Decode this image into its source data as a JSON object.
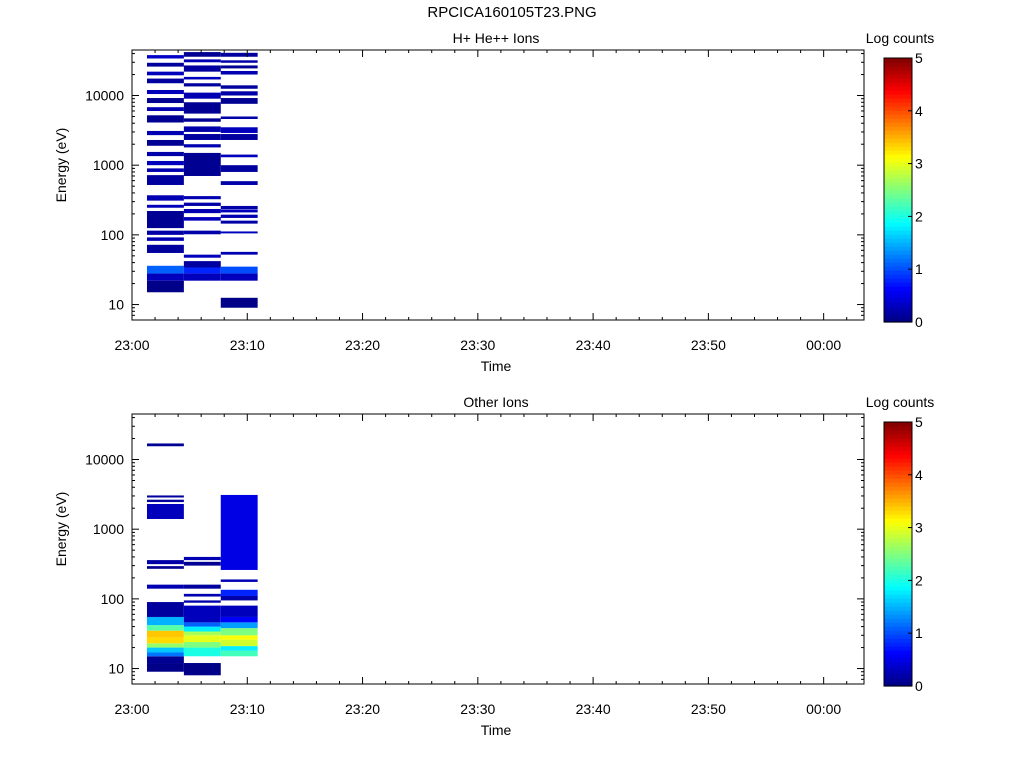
{
  "figure_title": "RPCICA160105T23.PNG",
  "colors": {
    "colormap": [
      "#00007f",
      "#0000ff",
      "#007fff",
      "#00ffff",
      "#7fff7f",
      "#ffff00",
      "#ff7f00",
      "#ff0000",
      "#7f0000"
    ]
  },
  "chart_data": [
    {
      "type": "heatmap",
      "title": "H+ He++ Ions",
      "xlabel": "Time",
      "ylabel": "Energy (eV)",
      "x_ticks": [
        "23:00",
        "23:10",
        "23:20",
        "23:30",
        "23:40",
        "23:50",
        "00:00"
      ],
      "x_range_minutes": [
        0,
        63.5
      ],
      "y_scale": "log",
      "y_range": [
        6,
        45000
      ],
      "y_ticks": [
        {
          "value": 10,
          "label": "10"
        },
        {
          "value": 100,
          "label": "100"
        },
        {
          "value": 1000,
          "label": "1000"
        },
        {
          "value": 10000,
          "label": "10000"
        }
      ],
      "colorbar": {
        "label": "Log counts",
        "range": [
          0,
          5
        ],
        "ticks": [
          "0",
          "1",
          "2",
          "3",
          "4",
          "5"
        ]
      },
      "columns": [
        {
          "t0": 1.3,
          "t1": 4.5,
          "cells": [
            {
              "e0": 15,
              "e1": 22,
              "v": 0.05
            },
            {
              "e0": 22,
              "e1": 28,
              "v": 0.3
            },
            {
              "e0": 28,
              "e1": 36,
              "v": 1.1
            },
            {
              "e0": 55,
              "e1": 72,
              "v": 0.15
            },
            {
              "e0": 82,
              "e1": 92,
              "v": 0.25
            },
            {
              "e0": 100,
              "e1": 115,
              "v": 0.2
            },
            {
              "e0": 125,
              "e1": 220,
              "v": 0.1
            },
            {
              "e0": 245,
              "e1": 270,
              "v": 0.3
            },
            {
              "e0": 310,
              "e1": 370,
              "v": 0.25
            },
            {
              "e0": 520,
              "e1": 720,
              "v": 0.15
            },
            {
              "e0": 800,
              "e1": 900,
              "v": 0.25
            },
            {
              "e0": 1000,
              "e1": 1150,
              "v": 0.3
            },
            {
              "e0": 1350,
              "e1": 1550,
              "v": 0.2
            },
            {
              "e0": 1900,
              "e1": 2300,
              "v": 0.1
            },
            {
              "e0": 2700,
              "e1": 3100,
              "v": 0.25
            },
            {
              "e0": 4100,
              "e1": 5200,
              "v": 0.1
            },
            {
              "e0": 6000,
              "e1": 6800,
              "v": 0.25
            },
            {
              "e0": 7800,
              "e1": 9200,
              "v": 0.1
            },
            {
              "e0": 10500,
              "e1": 12000,
              "v": 0.3
            },
            {
              "e0": 15000,
              "e1": 17500,
              "v": 0.15
            },
            {
              "e0": 19500,
              "e1": 22000,
              "v": 0.3
            },
            {
              "e0": 26000,
              "e1": 29500,
              "v": 0.15
            },
            {
              "e0": 34000,
              "e1": 38000,
              "v": 0.35
            }
          ]
        },
        {
          "t0": 4.5,
          "t1": 7.7,
          "cells": [
            {
              "e0": 22,
              "e1": 28,
              "v": 0.3
            },
            {
              "e0": 28,
              "e1": 34,
              "v": 0.8
            },
            {
              "e0": 34,
              "e1": 42,
              "v": 0.15
            },
            {
              "e0": 47,
              "e1": 52,
              "v": 0.3
            },
            {
              "e0": 102,
              "e1": 115,
              "v": 0.2
            },
            {
              "e0": 160,
              "e1": 180,
              "v": 0.3
            },
            {
              "e0": 205,
              "e1": 235,
              "v": 0.25
            },
            {
              "e0": 260,
              "e1": 290,
              "v": 0.2
            },
            {
              "e0": 325,
              "e1": 360,
              "v": 0.25
            },
            {
              "e0": 700,
              "e1": 1500,
              "v": 0.1
            },
            {
              "e0": 1800,
              "e1": 2000,
              "v": 0.25
            },
            {
              "e0": 2300,
              "e1": 2800,
              "v": 0.15
            },
            {
              "e0": 3000,
              "e1": 3600,
              "v": 0.2
            },
            {
              "e0": 4200,
              "e1": 4700,
              "v": 0.1
            },
            {
              "e0": 5500,
              "e1": 8000,
              "v": 0.1
            },
            {
              "e0": 9000,
              "e1": 11000,
              "v": 0.25
            },
            {
              "e0": 13500,
              "e1": 15000,
              "v": 0.15
            },
            {
              "e0": 17000,
              "e1": 18500,
              "v": 0.3
            },
            {
              "e0": 22000,
              "e1": 27000,
              "v": 0.15
            },
            {
              "e0": 30000,
              "e1": 33000,
              "v": 0.25
            },
            {
              "e0": 36000,
              "e1": 42000,
              "v": 0.1
            }
          ]
        },
        {
          "t0": 7.7,
          "t1": 10.9,
          "cells": [
            {
              "e0": 9,
              "e1": 12.5,
              "v": 0.05
            },
            {
              "e0": 22,
              "e1": 28,
              "v": 0.3
            },
            {
              "e0": 28,
              "e1": 35,
              "v": 1.0
            },
            {
              "e0": 52,
              "e1": 57,
              "v": 0.25
            },
            {
              "e0": 105,
              "e1": 112,
              "v": 0.3
            },
            {
              "e0": 145,
              "e1": 160,
              "v": 0.2
            },
            {
              "e0": 175,
              "e1": 195,
              "v": 0.25
            },
            {
              "e0": 210,
              "e1": 232,
              "v": 0.3
            },
            {
              "e0": 235,
              "e1": 260,
              "v": 0.2
            },
            {
              "e0": 520,
              "e1": 590,
              "v": 0.2
            },
            {
              "e0": 800,
              "e1": 1000,
              "v": 0.15
            },
            {
              "e0": 1300,
              "e1": 1420,
              "v": 0.3
            },
            {
              "e0": 2300,
              "e1": 2800,
              "v": 0.15
            },
            {
              "e0": 2900,
              "e1": 3500,
              "v": 0.3
            },
            {
              "e0": 4600,
              "e1": 5000,
              "v": 0.2
            },
            {
              "e0": 7600,
              "e1": 9200,
              "v": 0.1
            },
            {
              "e0": 10000,
              "e1": 11500,
              "v": 0.2
            },
            {
              "e0": 12500,
              "e1": 14000,
              "v": 0.15
            },
            {
              "e0": 20000,
              "e1": 22500,
              "v": 0.25
            },
            {
              "e0": 24500,
              "e1": 27000,
              "v": 0.1
            },
            {
              "e0": 29500,
              "e1": 32000,
              "v": 0.2
            },
            {
              "e0": 36000,
              "e1": 41000,
              "v": 0.15
            }
          ]
        }
      ]
    },
    {
      "type": "heatmap",
      "title": "Other Ions",
      "xlabel": "Time",
      "ylabel": "Energy (eV)",
      "x_ticks": [
        "23:00",
        "23:10",
        "23:20",
        "23:30",
        "23:40",
        "23:50",
        "00:00"
      ],
      "x_range_minutes": [
        0,
        63.5
      ],
      "y_scale": "log",
      "y_range": [
        6,
        45000
      ],
      "y_ticks": [
        {
          "value": 10,
          "label": "10"
        },
        {
          "value": 100,
          "label": "100"
        },
        {
          "value": 1000,
          "label": "1000"
        },
        {
          "value": 10000,
          "label": "10000"
        }
      ],
      "colorbar": {
        "label": "Log counts",
        "range": [
          0,
          5
        ],
        "ticks": [
          "0",
          "1",
          "2",
          "3",
          "4",
          "5"
        ]
      },
      "columns": [
        {
          "t0": 1.3,
          "t1": 4.5,
          "cells": [
            {
              "e0": 9,
              "e1": 12,
              "v": 0.05
            },
            {
              "e0": 12,
              "e1": 15,
              "v": 0.1
            },
            {
              "e0": 15,
              "e1": 17,
              "v": 1.2
            },
            {
              "e0": 17,
              "e1": 20,
              "v": 1.6
            },
            {
              "e0": 20,
              "e1": 23,
              "v": 2.6
            },
            {
              "e0": 23,
              "e1": 28,
              "v": 3.3
            },
            {
              "e0": 28,
              "e1": 35,
              "v": 3.4
            },
            {
              "e0": 35,
              "e1": 42,
              "v": 2.3
            },
            {
              "e0": 42,
              "e1": 55,
              "v": 1.5
            },
            {
              "e0": 55,
              "e1": 90,
              "v": 0.15
            },
            {
              "e0": 140,
              "e1": 160,
              "v": 0.25
            },
            {
              "e0": 270,
              "e1": 295,
              "v": 0.1
            },
            {
              "e0": 315,
              "e1": 360,
              "v": 0.2
            },
            {
              "e0": 1400,
              "e1": 2300,
              "v": 0.3
            },
            {
              "e0": 2450,
              "e1": 2650,
              "v": 0.15
            },
            {
              "e0": 2850,
              "e1": 3050,
              "v": 0.15
            },
            {
              "e0": 15500,
              "e1": 17000,
              "v": 0.1
            }
          ]
        },
        {
          "t0": 4.5,
          "t1": 7.7,
          "cells": [
            {
              "e0": 8,
              "e1": 12,
              "v": 0.05
            },
            {
              "e0": 15,
              "e1": 20,
              "v": 2.0
            },
            {
              "e0": 20,
              "e1": 24,
              "v": 2.5
            },
            {
              "e0": 24,
              "e1": 30,
              "v": 3.0
            },
            {
              "e0": 30,
              "e1": 34,
              "v": 2.7
            },
            {
              "e0": 34,
              "e1": 40,
              "v": 1.8
            },
            {
              "e0": 40,
              "e1": 46,
              "v": 1.1
            },
            {
              "e0": 46,
              "e1": 80,
              "v": 0.3
            },
            {
              "e0": 88,
              "e1": 95,
              "v": 0.2
            },
            {
              "e0": 108,
              "e1": 118,
              "v": 0.25
            },
            {
              "e0": 140,
              "e1": 160,
              "v": 0.15
            },
            {
              "e0": 300,
              "e1": 340,
              "v": 0.1
            },
            {
              "e0": 360,
              "e1": 400,
              "v": 0.25
            }
          ]
        },
        {
          "t0": 7.7,
          "t1": 10.9,
          "cells": [
            {
              "e0": 15,
              "e1": 18,
              "v": 2.2
            },
            {
              "e0": 18,
              "e1": 21,
              "v": 1.8
            },
            {
              "e0": 21,
              "e1": 26,
              "v": 2.9
            },
            {
              "e0": 26,
              "e1": 30,
              "v": 3.1
            },
            {
              "e0": 30,
              "e1": 38,
              "v": 2.5
            },
            {
              "e0": 38,
              "e1": 46,
              "v": 1.4
            },
            {
              "e0": 46,
              "e1": 55,
              "v": 0.6
            },
            {
              "e0": 55,
              "e1": 80,
              "v": 0.3
            },
            {
              "e0": 95,
              "e1": 110,
              "v": 0.2
            },
            {
              "e0": 110,
              "e1": 135,
              "v": 0.8
            },
            {
              "e0": 175,
              "e1": 190,
              "v": 0.25
            },
            {
              "e0": 260,
              "e1": 3100,
              "v": 0.5
            }
          ]
        }
      ]
    }
  ]
}
